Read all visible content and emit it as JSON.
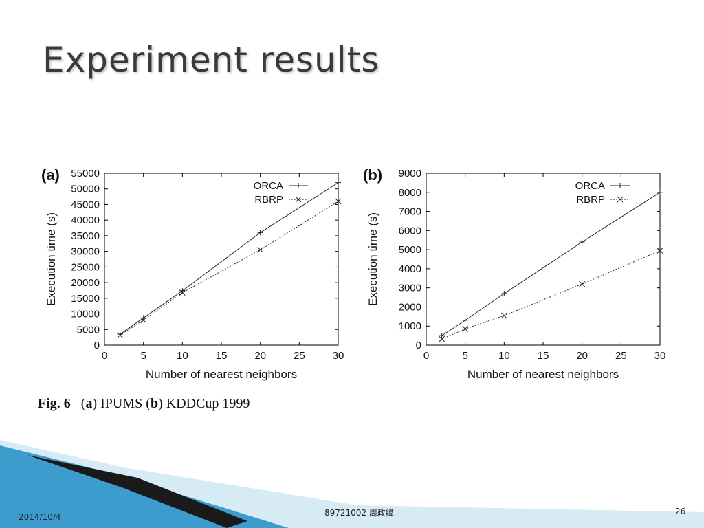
{
  "slide": {
    "title": "Experiment results"
  },
  "caption": {
    "fig": "Fig. 6",
    "a": "a",
    "a_text": "IPUMS",
    "b": "b",
    "b_text": "KDDCup 1999"
  },
  "footer": {
    "date": "2014/10/4",
    "center": "89721002 周政緯",
    "page": "26"
  },
  "colors": {
    "axis": "#000000",
    "series": "#222222",
    "deco_dark": "#1a1a1a",
    "deco_blue": "#2f8fc4",
    "deco_light": "#bfe0ee"
  },
  "chart_data": [
    {
      "type": "line",
      "panel_label": "(a)",
      "xlabel": "Number of nearest neighbors",
      "ylabel": "Execution time (s)",
      "xlim": [
        0,
        30
      ],
      "ylim": [
        0,
        55000
      ],
      "xticks": [
        0,
        5,
        10,
        15,
        20,
        25,
        30
      ],
      "yticks": [
        0,
        5000,
        10000,
        15000,
        20000,
        25000,
        30000,
        35000,
        40000,
        45000,
        50000,
        55000
      ],
      "legend_position": "top-right",
      "series": [
        {
          "name": "ORCA",
          "marker": "plus",
          "dash": "solid",
          "x": [
            2,
            5,
            10,
            20,
            30
          ],
          "y": [
            3500,
            8700,
            17400,
            36000,
            52000
          ]
        },
        {
          "name": "RBRP",
          "marker": "cross",
          "dash": "dotted",
          "x": [
            2,
            5,
            10,
            20,
            30
          ],
          "y": [
            3200,
            8000,
            16800,
            30500,
            46000
          ]
        }
      ]
    },
    {
      "type": "line",
      "panel_label": "(b)",
      "xlabel": "Number of nearest neighbors",
      "ylabel": "Execution time (s)",
      "xlim": [
        0,
        30
      ],
      "ylim": [
        0,
        9000
      ],
      "xticks": [
        0,
        5,
        10,
        15,
        20,
        25,
        30
      ],
      "yticks": [
        0,
        1000,
        2000,
        3000,
        4000,
        5000,
        6000,
        7000,
        8000,
        9000
      ],
      "legend_position": "top-right",
      "series": [
        {
          "name": "ORCA",
          "marker": "plus",
          "dash": "solid",
          "x": [
            2,
            5,
            10,
            20,
            30
          ],
          "y": [
            500,
            1300,
            2700,
            5400,
            8000
          ]
        },
        {
          "name": "RBRP",
          "marker": "cross",
          "dash": "dotted",
          "x": [
            2,
            5,
            10,
            20,
            30
          ],
          "y": [
            320,
            850,
            1550,
            3200,
            4950
          ]
        }
      ]
    }
  ]
}
